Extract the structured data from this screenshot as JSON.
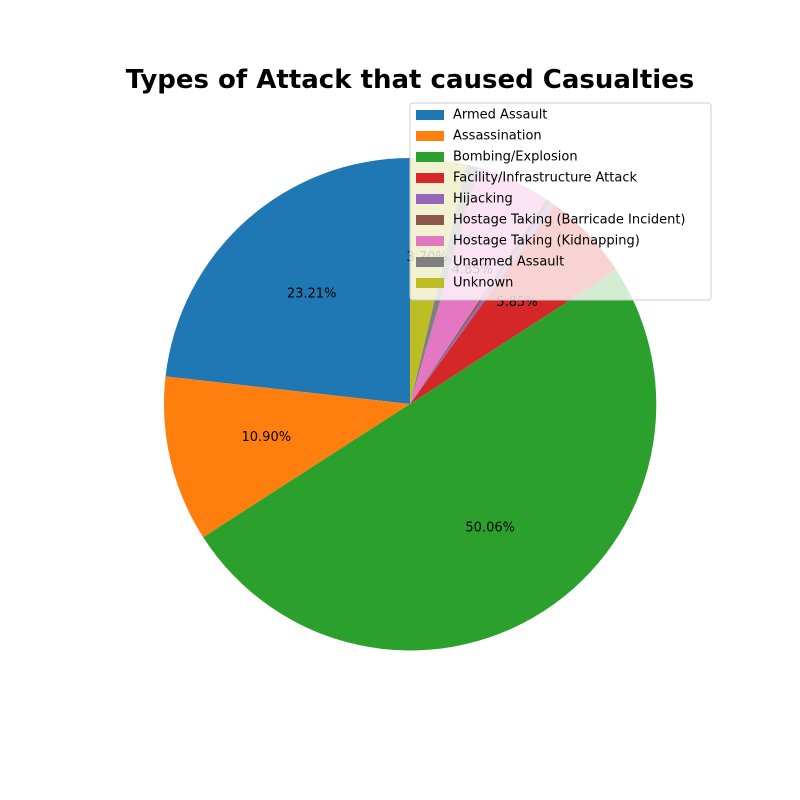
{
  "chart_data": {
    "type": "pie",
    "title": "Types of Attack that caused Casualties",
    "categories": [
      "Armed Assault",
      "Assassination",
      "Bombing/Explosion",
      "Facility/Infrastructure Attack",
      "Hijacking",
      "Hostage Taking (Barricade Incident)",
      "Hostage Taking (Kidnapping)",
      "Unarmed Assault",
      "Unknown"
    ],
    "values": [
      23.21,
      10.9,
      50.06,
      5.85,
      0.35,
      0.26,
      4.85,
      0.82,
      3.7
    ],
    "labels": [
      "23.21%",
      "10.90%",
      "50.06%",
      "5.85%",
      "",
      "",
      "4.85%",
      "",
      "3.70%"
    ],
    "colors": [
      "#1f77b4",
      "#ff7f0e",
      "#2ca02c",
      "#d62728",
      "#9467bd",
      "#8c564b",
      "#e377c2",
      "#7f7f7f",
      "#bcbd22"
    ],
    "start_angle": 90,
    "direction": "counterclockwise",
    "legend_position": "upper-right"
  }
}
